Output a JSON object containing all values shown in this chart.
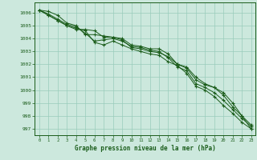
{
  "xlabel": "Graphe pression niveau de la mer (hPa)",
  "bg_color": "#cce8dd",
  "grid_color": "#99ccbb",
  "line_color": "#1a5c1a",
  "text_color": "#1a5c1a",
  "ylim": [
    996.5,
    1006.8
  ],
  "xlim": [
    -0.5,
    23.5
  ],
  "yticks": [
    997,
    998,
    999,
    1000,
    1001,
    1002,
    1003,
    1004,
    1005,
    1006
  ],
  "xticks": [
    0,
    1,
    2,
    3,
    4,
    5,
    6,
    7,
    8,
    9,
    10,
    11,
    12,
    13,
    14,
    15,
    16,
    17,
    18,
    19,
    20,
    21,
    22,
    23
  ],
  "series": [
    [
      1006.2,
      1006.1,
      1005.8,
      1005.2,
      1005.0,
      1004.3,
      1004.3,
      1004.2,
      1004.1,
      1004.0,
      1003.5,
      1003.4,
      1003.2,
      1003.2,
      1002.8,
      1002.0,
      1001.8,
      1001.0,
      1000.5,
      1000.2,
      999.8,
      999.0,
      998.0,
      997.0
    ],
    [
      1006.2,
      1005.9,
      1005.5,
      1005.1,
      1004.9,
      1004.4,
      1003.8,
      1003.9,
      1004.0,
      1003.8,
      1003.4,
      1003.3,
      1003.1,
      1003.0,
      1002.5,
      1001.8,
      1001.5,
      1000.5,
      1000.2,
      999.8,
      999.2,
      998.5,
      997.8,
      997.2
    ],
    [
      1006.2,
      1005.8,
      1005.4,
      1005.0,
      1004.8,
      1004.6,
      1003.7,
      1003.5,
      1003.8,
      1003.5,
      1003.2,
      1003.0,
      1002.8,
      1002.7,
      1002.2,
      1001.9,
      1001.3,
      1000.3,
      1000.0,
      999.5,
      998.8,
      998.2,
      997.5,
      997.0
    ],
    [
      1006.2,
      1005.8,
      1005.4,
      1005.0,
      1004.7,
      1004.7,
      1004.6,
      1004.1,
      1004.1,
      1003.9,
      1003.3,
      1003.2,
      1003.0,
      1002.9,
      1002.6,
      1002.0,
      1001.7,
      1000.8,
      1000.4,
      1000.2,
      999.6,
      998.7,
      998.0,
      997.3
    ]
  ],
  "fig_width": 3.2,
  "fig_height": 2.0,
  "dpi": 100
}
